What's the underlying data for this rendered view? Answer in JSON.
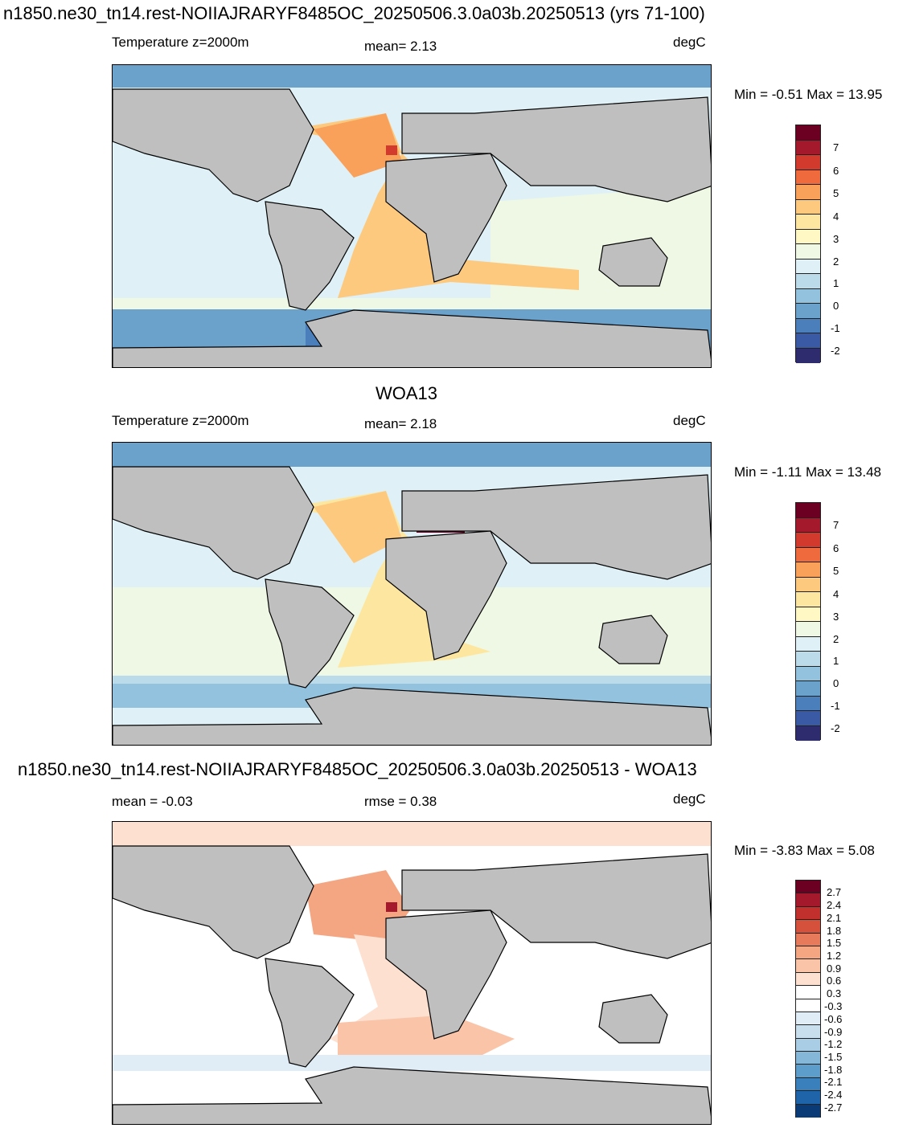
{
  "panels": [
    {
      "title": "n1850.ne30_tn14.rest-NOIIAJRARYF8485OC_20250506.3.0a03b.20250513 (yrs 71-100)",
      "left_label": "Temperature z=2000m",
      "center_label": "mean=   2.13",
      "units": "degC",
      "minmax": "Min =  -0.51 Max =  13.95",
      "ticks": [
        "7",
        "6",
        "5",
        "4",
        "3",
        "2",
        "1",
        "0",
        "-1",
        "-2"
      ]
    },
    {
      "title": "WOA13",
      "left_label": "Temperature z=2000m",
      "center_label": "mean=   2.18",
      "units": "degC",
      "minmax": "Min =  -1.11 Max =  13.48",
      "ticks": [
        "7",
        "6",
        "5",
        "4",
        "3",
        "2",
        "1",
        "0",
        "-1",
        "-2"
      ]
    },
    {
      "title": "n1850.ne30_tn14.rest-NOIIAJRARYF8485OC_20250506.3.0a03b.20250513 - WOA13",
      "left_label": "mean =  -0.03",
      "center_label": "rmse =   0.38",
      "units": "degC",
      "minmax": "Min =  -3.83 Max =   5.08",
      "ticks": [
        "2.7",
        "2.4",
        "2.1",
        "1.8",
        "1.5",
        "1.2",
        "0.9",
        "0.6",
        "0.3",
        "-0.3",
        "-0.6",
        "-0.9",
        "-1.2",
        "-1.5",
        "-1.8",
        "-2.1",
        "-2.4",
        "-2.7"
      ]
    }
  ],
  "colors": {
    "land": "#bfbfbf",
    "temp_scale": [
      "#6b0022",
      "#a5192c",
      "#d33a2e",
      "#ef6a3c",
      "#f9a05a",
      "#fdc97e",
      "#fde7a0",
      "#fff8c4",
      "#eff8e4",
      "#dff1f6",
      "#bcdbea",
      "#92c2de",
      "#6ba2cc",
      "#4a7fbb",
      "#3b5aa5",
      "#2e2c6e"
    ],
    "diff_scale": [
      "#6b0022",
      "#a5192c",
      "#c2302d",
      "#d6513c",
      "#e77a5a",
      "#f4a582",
      "#f9c4a8",
      "#fde0d0",
      "#ffffff",
      "#ffffff",
      "#e1edf6",
      "#c9dfee",
      "#a9cde4",
      "#84b7d8",
      "#5c9dcb",
      "#3a80bc",
      "#1f63a8",
      "#0b3b76"
    ]
  }
}
